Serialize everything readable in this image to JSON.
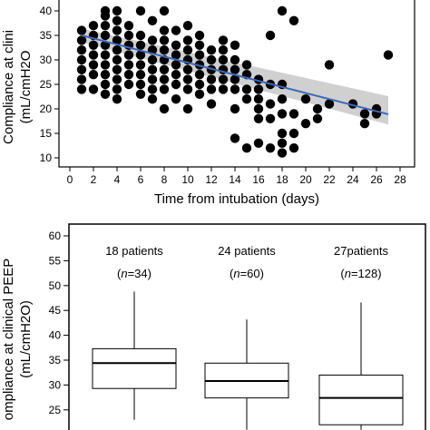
{
  "chart_data": [
    {
      "type": "scatter",
      "xlabel": "Time from intubation (days)",
      "ylabel_lines": [
        "Compliance at clini",
        "(mL/cmH2O"
      ],
      "xlim": [
        0,
        28
      ],
      "ylim": [
        10,
        42
      ],
      "xticks": [
        "0",
        "2",
        "4",
        "6",
        "8",
        "10",
        "12",
        "14",
        "16",
        "18",
        "20",
        "22",
        "24",
        "26",
        "28"
      ],
      "yticks": [
        "10",
        "15",
        "20",
        "25",
        "30",
        "35",
        "40"
      ],
      "colors": {
        "points": "#000000",
        "fit_line": "#3a6ab8",
        "ci_band": "#c8c8c8"
      },
      "fit": {
        "x": [
          1,
          27
        ],
        "y": [
          35.0,
          18.9
        ],
        "ci_lower_end": [
          1,
          33.6
        ],
        "ci_upper_end": [
          27,
          22.6
        ],
        "ci_lower_start": [
          1,
          33.6
        ],
        "ci_upper_start": [
          1,
          36.4
        ],
        "ci_end_low": [
          27,
          16.8
        ]
      },
      "points": [
        [
          1,
          24
        ],
        [
          1,
          26
        ],
        [
          1,
          28
        ],
        [
          1,
          30
        ],
        [
          1,
          32
        ],
        [
          1,
          34
        ],
        [
          1,
          36
        ],
        [
          2,
          24
        ],
        [
          2,
          27
        ],
        [
          2,
          29
        ],
        [
          2,
          31
        ],
        [
          2,
          33
        ],
        [
          2,
          35
        ],
        [
          2,
          37
        ],
        [
          3,
          23
        ],
        [
          3,
          25
        ],
        [
          3,
          27
        ],
        [
          3,
          29
        ],
        [
          3,
          31
        ],
        [
          3,
          33
        ],
        [
          3,
          35
        ],
        [
          3,
          37
        ],
        [
          3,
          39
        ],
        [
          3,
          40
        ],
        [
          4,
          22
        ],
        [
          4,
          24
        ],
        [
          4,
          26
        ],
        [
          4,
          28
        ],
        [
          4,
          30
        ],
        [
          4,
          32
        ],
        [
          4,
          34
        ],
        [
          4,
          36
        ],
        [
          4,
          38
        ],
        [
          4,
          40
        ],
        [
          5,
          25
        ],
        [
          5,
          27
        ],
        [
          5,
          29
        ],
        [
          5,
          31
        ],
        [
          5,
          33
        ],
        [
          5,
          35
        ],
        [
          5,
          37
        ],
        [
          6,
          23
        ],
        [
          6,
          25
        ],
        [
          6,
          27
        ],
        [
          6,
          29
        ],
        [
          6,
          31
        ],
        [
          6,
          33
        ],
        [
          6,
          35
        ],
        [
          6,
          40
        ],
        [
          7,
          22
        ],
        [
          7,
          24
        ],
        [
          7,
          26
        ],
        [
          7,
          28
        ],
        [
          7,
          30
        ],
        [
          7,
          32
        ],
        [
          7,
          34
        ],
        [
          7,
          38
        ],
        [
          8,
          20
        ],
        [
          8,
          24
        ],
        [
          8,
          26
        ],
        [
          8,
          28
        ],
        [
          8,
          30
        ],
        [
          8,
          32
        ],
        [
          8,
          34
        ],
        [
          8,
          36
        ],
        [
          8,
          40
        ],
        [
          9,
          22
        ],
        [
          9,
          25
        ],
        [
          9,
          27
        ],
        [
          9,
          29
        ],
        [
          9,
          31
        ],
        [
          9,
          33
        ],
        [
          9,
          36
        ],
        [
          10,
          20
        ],
        [
          10,
          24
        ],
        [
          10,
          26
        ],
        [
          10,
          28
        ],
        [
          10,
          30
        ],
        [
          10,
          32
        ],
        [
          10,
          34
        ],
        [
          10,
          37
        ],
        [
          11,
          23
        ],
        [
          11,
          25
        ],
        [
          11,
          27
        ],
        [
          11,
          29
        ],
        [
          11,
          31
        ],
        [
          11,
          33
        ],
        [
          11,
          35
        ],
        [
          12,
          21
        ],
        [
          12,
          24
        ],
        [
          12,
          26
        ],
        [
          12,
          28
        ],
        [
          12,
          30
        ],
        [
          12,
          32
        ],
        [
          13,
          24
        ],
        [
          13,
          26
        ],
        [
          13,
          28
        ],
        [
          13,
          30
        ],
        [
          13,
          32
        ],
        [
          13,
          34
        ],
        [
          14,
          14
        ],
        [
          14,
          20
        ],
        [
          14,
          24
        ],
        [
          14,
          26
        ],
        [
          14,
          28
        ],
        [
          14,
          30
        ],
        [
          14,
          33
        ],
        [
          15,
          12
        ],
        [
          15,
          22
        ],
        [
          15,
          24
        ],
        [
          15,
          27
        ],
        [
          15,
          29
        ],
        [
          16,
          13
        ],
        [
          16,
          18
        ],
        [
          16,
          20
        ],
        [
          16,
          22
        ],
        [
          16,
          24
        ],
        [
          16,
          26
        ],
        [
          17,
          12
        ],
        [
          17,
          18
        ],
        [
          17,
          21
        ],
        [
          17,
          25
        ],
        [
          17,
          35
        ],
        [
          18,
          11
        ],
        [
          18,
          13
        ],
        [
          18,
          15
        ],
        [
          18,
          19
        ],
        [
          18,
          22
        ],
        [
          18,
          25
        ],
        [
          18,
          40
        ],
        [
          19,
          12
        ],
        [
          19,
          15
        ],
        [
          19,
          19
        ],
        [
          19,
          38
        ],
        [
          20,
          17
        ],
        [
          20,
          22
        ],
        [
          21,
          18
        ],
        [
          21,
          20
        ],
        [
          22,
          21
        ],
        [
          22,
          29
        ],
        [
          24,
          21
        ],
        [
          25,
          17
        ],
        [
          25,
          19
        ],
        [
          26,
          19
        ],
        [
          26,
          20
        ],
        [
          27,
          31
        ]
      ]
    },
    {
      "type": "box",
      "ylabel_lines": [
        "ompliance at clinical PEEP",
        "(mL/cmH2O)"
      ],
      "ylim": [
        22,
        61
      ],
      "yticks": [
        "25",
        "30",
        "35",
        "40",
        "45",
        "50",
        "55",
        "60"
      ],
      "groups": [
        {
          "label": "18 patients",
          "n_label": "(n=34)",
          "n_prefix": "(",
          "n_italic": "n",
          "n_suffix": "=34)",
          "whisker_low": 23,
          "q1": 29.3,
          "median": 34.4,
          "q3": 37.3,
          "whisker_high": 48.8
        },
        {
          "label": "24 patients",
          "n_label": "(n=60)",
          "n_prefix": "(",
          "n_italic": "n",
          "n_suffix": "=60)",
          "whisker_low": 21,
          "q1": 27.4,
          "median": 30.8,
          "q3": 34.4,
          "whisker_high": 43.2
        },
        {
          "label": "27patients",
          "n_label": "(n=128)",
          "n_prefix": "(",
          "n_italic": "n",
          "n_suffix": "=128)",
          "whisker_low": 21,
          "q1": 22,
          "median": 27.4,
          "q3": 32,
          "whisker_high": 46.6
        }
      ]
    }
  ]
}
